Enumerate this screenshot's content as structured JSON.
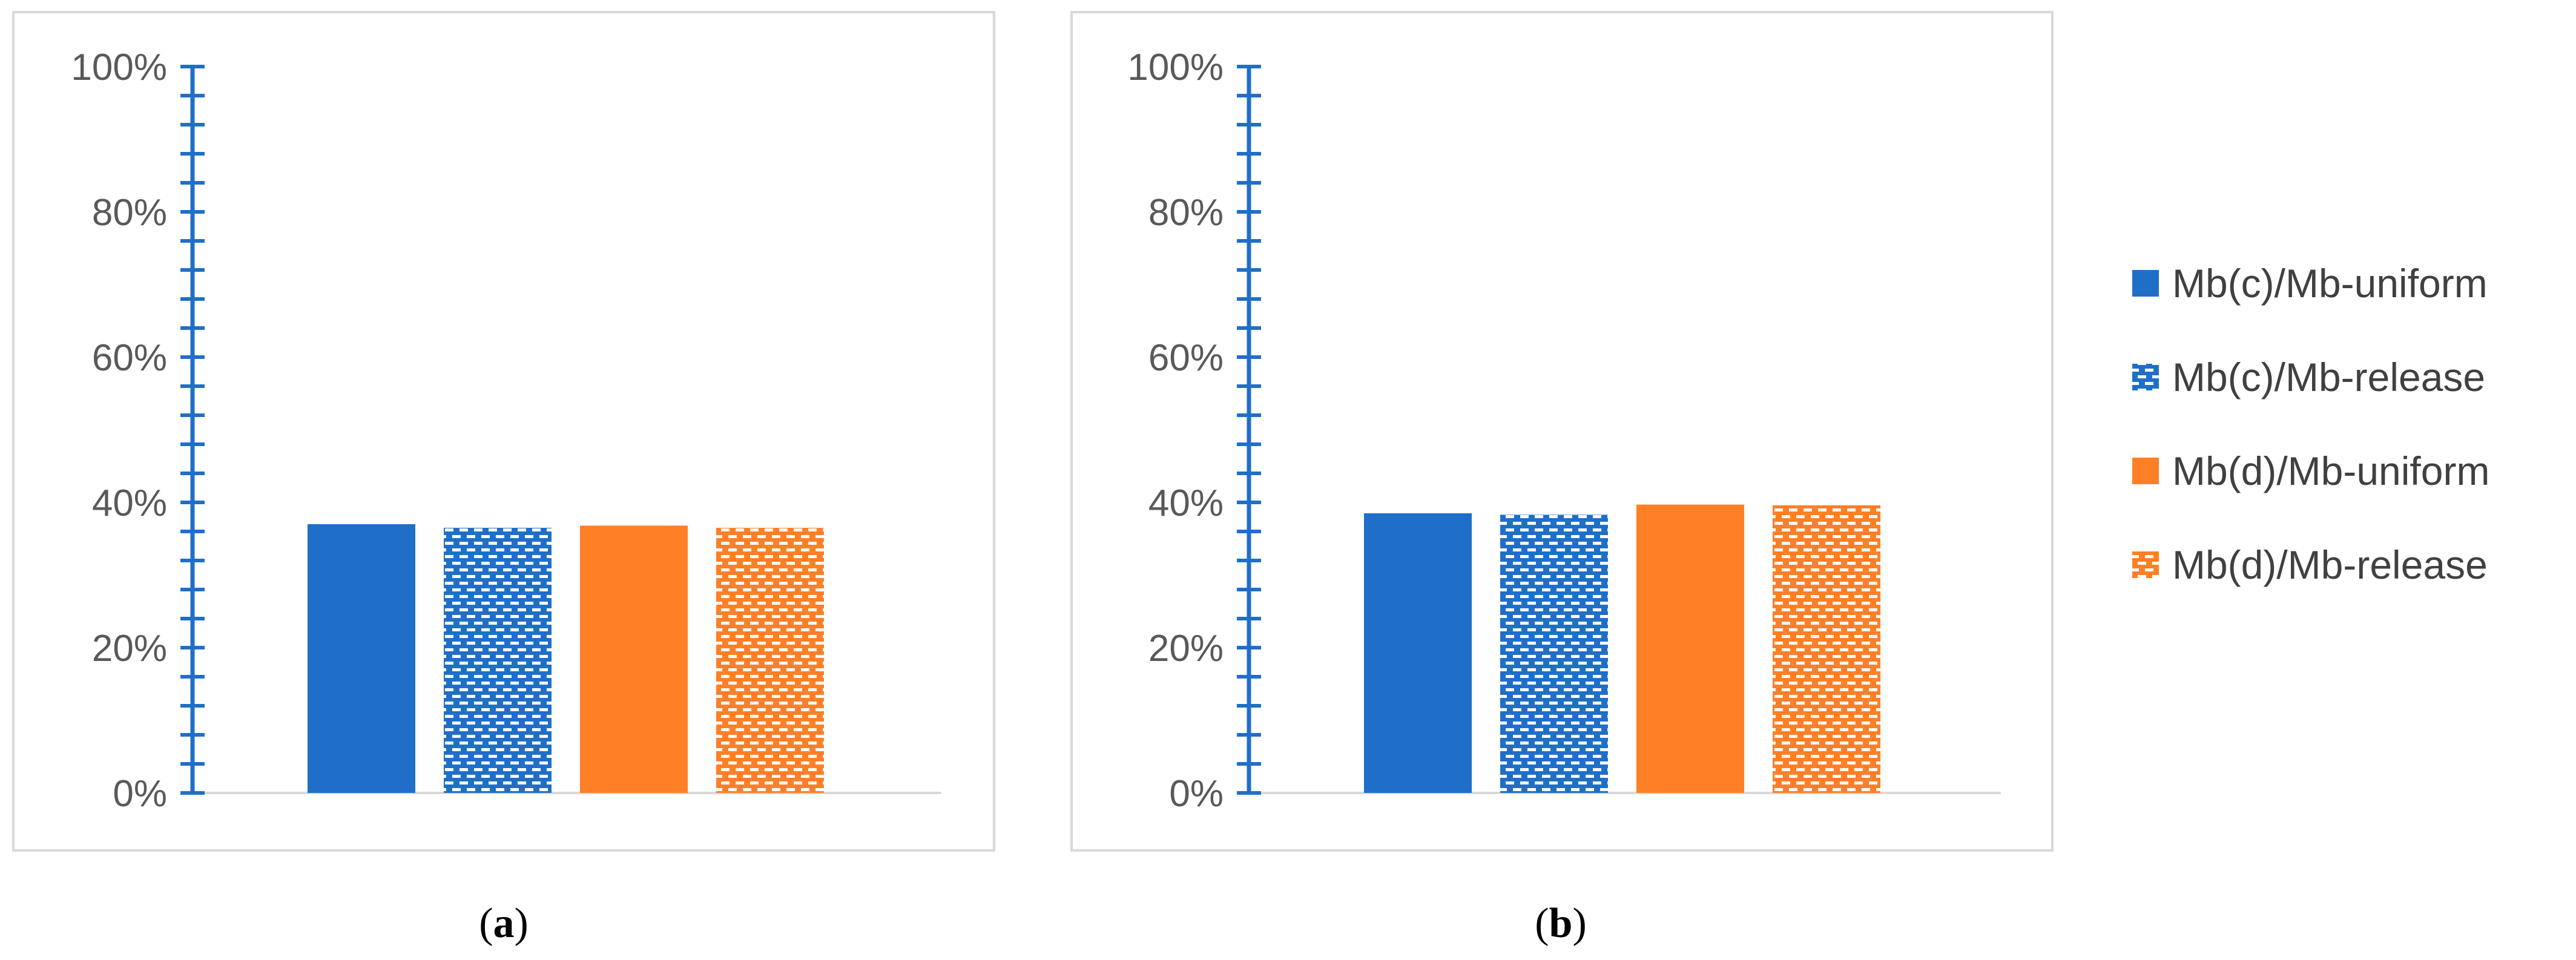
{
  "chart_data": [
    {
      "type": "bar",
      "panel_label": "a",
      "categories": [
        ""
      ],
      "series": [
        {
          "name": "Mb(c)/Mb-uniform",
          "values": [
            0.37
          ]
        },
        {
          "name": "Mb(c)/Mb-release",
          "values": [
            0.365
          ]
        },
        {
          "name": "Mb(d)/Mb-uniform",
          "values": [
            0.368
          ]
        },
        {
          "name": "Mb(d)/Mb-release",
          "values": [
            0.365
          ]
        }
      ],
      "ylim": [
        0,
        1
      ],
      "yticks": [
        "0%",
        "20%",
        "40%",
        "60%",
        "80%",
        "100%"
      ],
      "grid": false
    },
    {
      "type": "bar",
      "panel_label": "b",
      "categories": [
        ""
      ],
      "series": [
        {
          "name": "Mb(c)/Mb-uniform",
          "values": [
            0.385
          ]
        },
        {
          "name": "Mb(c)/Mb-release",
          "values": [
            0.383
          ]
        },
        {
          "name": "Mb(d)/Mb-uniform",
          "values": [
            0.397
          ]
        },
        {
          "name": "Mb(d)/Mb-release",
          "values": [
            0.396
          ]
        }
      ],
      "ylim": [
        0,
        1
      ],
      "yticks": [
        "0%",
        "20%",
        "40%",
        "60%",
        "80%",
        "100%"
      ],
      "grid": false
    }
  ],
  "legend": {
    "position": "right",
    "items": [
      {
        "label": "Mb(c)/Mb-uniform",
        "color": "#1f6fc8",
        "pattern": "solid"
      },
      {
        "label": "Mb(c)/Mb-release",
        "color": "#1f6fc8",
        "pattern": "dotted"
      },
      {
        "label": "Mb(d)/Mb-uniform",
        "color": "#ff7f27",
        "pattern": "solid"
      },
      {
        "label": "Mb(d)/Mb-release",
        "color": "#ff7f27",
        "pattern": "dotted"
      }
    ]
  },
  "colors": {
    "axis": "#1f6fc8",
    "baseline": "#d9d9d9",
    "frame": "#d9d9d9"
  }
}
